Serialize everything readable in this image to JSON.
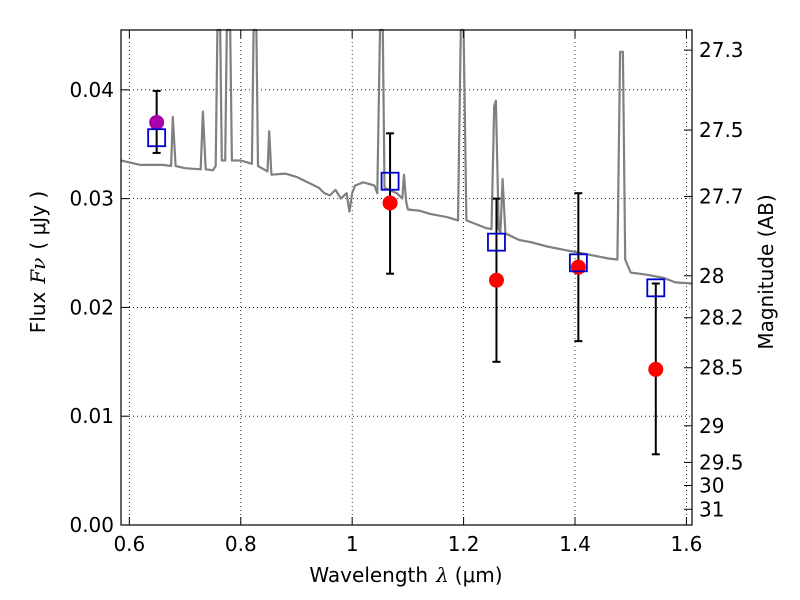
{
  "chart_data": {
    "type": "scatter",
    "xlabel_text": "Wavelength",
    "xlabel_symbol": "λ",
    "xlabel_unit": "(μm)",
    "ylabel_text": "Flux",
    "ylabel_symbol": "Fν",
    "ylabel_unit": "( μJy )",
    "y2label": "Magnitude (AB)",
    "xlim": [
      0.585,
      1.61
    ],
    "ylim": [
      0.0,
      0.0455
    ],
    "grid": true,
    "x_ticks": [
      0.6,
      0.8,
      1.0,
      1.2,
      1.4,
      1.6
    ],
    "x_tick_labels": [
      "0.6",
      "0.8",
      "1",
      "1.2",
      "1.4",
      "1.6"
    ],
    "y_ticks": [
      0.0,
      0.01,
      0.02,
      0.03,
      0.04
    ],
    "y_tick_labels": [
      "0.00",
      "0.01",
      "0.02",
      "0.03",
      "0.04"
    ],
    "y2_ticks": [
      27.3,
      27.5,
      27.7,
      28.0,
      28.2,
      28.5,
      29.0,
      29.5,
      30.0,
      31.0
    ],
    "y2_tick_labels": [
      "27.3",
      "27.5",
      "27.7",
      "28",
      "28.2",
      "28.5",
      "29",
      "29.5",
      "30",
      "31"
    ],
    "series": [
      {
        "kind": "line",
        "color": "#808080",
        "points": [
          [
            0.585,
            0.0335
          ],
          [
            0.62,
            0.0331
          ],
          [
            0.66,
            0.0331
          ],
          [
            0.675,
            0.033
          ],
          [
            0.678,
            0.0375
          ],
          [
            0.683,
            0.033
          ],
          [
            0.7,
            0.0328
          ],
          [
            0.728,
            0.0327
          ],
          [
            0.732,
            0.038
          ],
          [
            0.737,
            0.0327
          ],
          [
            0.75,
            0.0326
          ],
          [
            0.755,
            0.033
          ],
          [
            0.758,
            0.0455
          ],
          [
            0.763,
            0.0455
          ],
          [
            0.766,
            0.0335
          ],
          [
            0.772,
            0.0335
          ],
          [
            0.775,
            0.0455
          ],
          [
            0.781,
            0.0455
          ],
          [
            0.784,
            0.0335
          ],
          [
            0.8,
            0.0335
          ],
          [
            0.82,
            0.0332
          ],
          [
            0.823,
            0.0455
          ],
          [
            0.828,
            0.0455
          ],
          [
            0.831,
            0.033
          ],
          [
            0.848,
            0.0325
          ],
          [
            0.851,
            0.0362
          ],
          [
            0.855,
            0.0322
          ],
          [
            0.88,
            0.0323
          ],
          [
            0.9,
            0.032
          ],
          [
            0.92,
            0.0315
          ],
          [
            0.94,
            0.031
          ],
          [
            0.95,
            0.0305
          ],
          [
            0.96,
            0.0303
          ],
          [
            0.97,
            0.0308
          ],
          [
            0.98,
            0.03
          ],
          [
            0.99,
            0.0305
          ],
          [
            0.995,
            0.0288
          ],
          [
            1.0,
            0.0305
          ],
          [
            1.005,
            0.0312
          ],
          [
            1.02,
            0.0315
          ],
          [
            1.04,
            0.0312
          ],
          [
            1.045,
            0.0305
          ],
          [
            1.05,
            0.0455
          ],
          [
            1.055,
            0.0455
          ],
          [
            1.058,
            0.031
          ],
          [
            1.08,
            0.0305
          ],
          [
            1.09,
            0.03
          ],
          [
            1.093,
            0.0322
          ],
          [
            1.097,
            0.0297
          ],
          [
            1.1,
            0.029
          ],
          [
            1.12,
            0.0289
          ],
          [
            1.14,
            0.0286
          ],
          [
            1.17,
            0.0283
          ],
          [
            1.19,
            0.028
          ],
          [
            1.195,
            0.0455
          ],
          [
            1.2,
            0.0455
          ],
          [
            1.205,
            0.028
          ],
          [
            1.22,
            0.0277
          ],
          [
            1.24,
            0.0273
          ],
          [
            1.25,
            0.0272
          ],
          [
            1.255,
            0.0385
          ],
          [
            1.258,
            0.039
          ],
          [
            1.263,
            0.0272
          ],
          [
            1.266,
            0.0269
          ],
          [
            1.27,
            0.0318
          ],
          [
            1.275,
            0.0268
          ],
          [
            1.3,
            0.0262
          ],
          [
            1.32,
            0.026
          ],
          [
            1.35,
            0.0256
          ],
          [
            1.38,
            0.0253
          ],
          [
            1.41,
            0.025
          ],
          [
            1.44,
            0.0247
          ],
          [
            1.46,
            0.0245
          ],
          [
            1.476,
            0.0244
          ],
          [
            1.481,
            0.0435
          ],
          [
            1.486,
            0.0435
          ],
          [
            1.49,
            0.0244
          ],
          [
            1.5,
            0.0232
          ],
          [
            1.53,
            0.023
          ],
          [
            1.56,
            0.0227
          ],
          [
            1.58,
            0.0223
          ],
          [
            1.61,
            0.0222
          ]
        ]
      },
      {
        "kind": "red-points",
        "color": "#ff0000",
        "points": [
          {
            "x": 1.068,
            "y": 0.0296,
            "ylo": 0.0231,
            "yhi": 0.036
          },
          {
            "x": 1.259,
            "y": 0.0225,
            "ylo": 0.015,
            "yhi": 0.03
          },
          {
            "x": 1.406,
            "y": 0.0237,
            "ylo": 0.0169,
            "yhi": 0.0305
          },
          {
            "x": 1.545,
            "y": 0.0143,
            "ylo": 0.0065,
            "yhi": 0.0222
          }
        ]
      },
      {
        "kind": "magenta-point",
        "color": "#aa00aa",
        "points": [
          {
            "x": 0.649,
            "y": 0.037,
            "ylo": 0.0342,
            "yhi": 0.0399
          }
        ]
      },
      {
        "kind": "blue-squares",
        "color": "#0000cc",
        "points": [
          {
            "x": 0.649,
            "y": 0.0356
          },
          {
            "x": 1.068,
            "y": 0.0316
          },
          {
            "x": 1.259,
            "y": 0.026
          },
          {
            "x": 1.406,
            "y": 0.0241
          },
          {
            "x": 1.545,
            "y": 0.0218
          }
        ]
      }
    ]
  }
}
